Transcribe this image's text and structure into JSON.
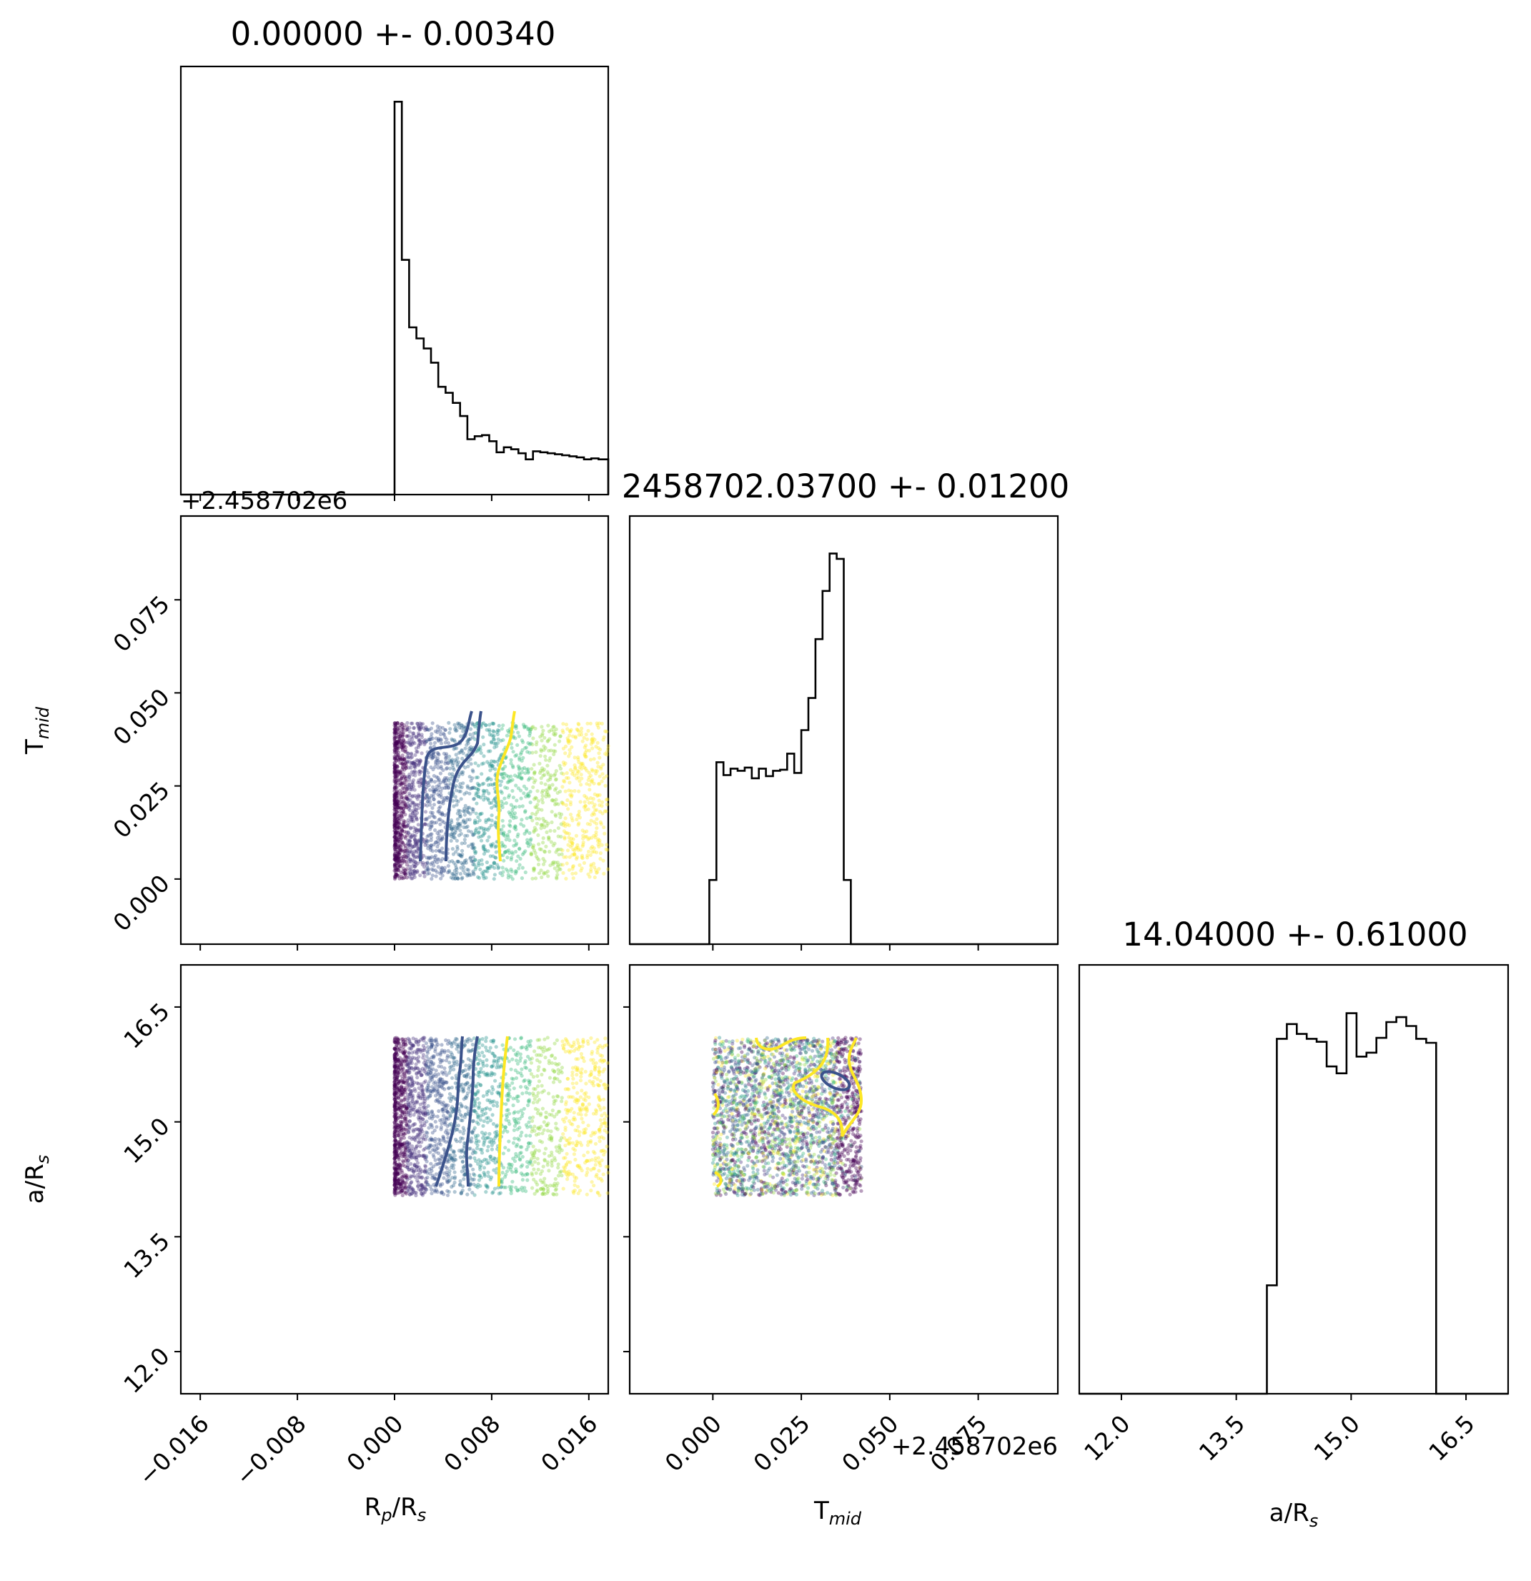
{
  "chart_data": [
    {
      "type": "histogram",
      "panel": "hist-rp",
      "title": "0.00000 +- 0.00340",
      "x_range": [
        -0.0176,
        0.0176
      ],
      "bins": [
        0.0,
        0.0006,
        0.0012,
        0.0018,
        0.0024,
        0.003,
        0.0036,
        0.0042,
        0.0048,
        0.0054,
        0.006,
        0.0066,
        0.0072,
        0.0078,
        0.0084,
        0.009,
        0.0096,
        0.0102,
        0.0108,
        0.0114,
        0.012,
        0.0126,
        0.0132,
        0.0138,
        0.0144,
        0.015,
        0.0156,
        0.0162,
        0.0168,
        0.0176
      ],
      "counts": [
        390,
        233,
        166,
        155,
        145,
        131,
        107,
        101,
        91,
        78,
        55,
        58,
        59,
        53,
        42,
        47,
        45,
        41,
        35,
        43,
        42,
        41,
        40,
        39,
        38,
        37,
        35,
        36,
        35
      ],
      "y_range": [
        0,
        425
      ]
    },
    {
      "type": "histogram",
      "panel": "hist-tmid",
      "title": "2458702.03700 +- 0.01200",
      "x_range": [
        -0.0235,
        0.0975
      ],
      "offset_label": "+2.458702e6",
      "xlabel": "T",
      "xlabel_sub": "mid",
      "x_ticks": [
        "0.000",
        "0.025",
        "0.050",
        "0.075"
      ],
      "bins": [
        -0.001,
        0.001,
        0.003,
        0.005,
        0.007,
        0.009,
        0.011,
        0.013,
        0.015,
        0.017,
        0.019,
        0.021,
        0.023,
        0.025,
        0.027,
        0.029,
        0.031,
        0.033,
        0.035,
        0.037,
        0.039,
        0.041,
        0.043
      ],
      "counts": [
        60,
        170,
        158,
        164,
        162,
        165,
        155,
        164,
        157,
        162,
        163,
        178,
        160,
        200,
        230,
        285,
        330,
        365,
        360,
        60,
        0,
        0
      ],
      "y_range": [
        0,
        400
      ]
    },
    {
      "type": "histogram",
      "panel": "hist-ars",
      "title": "14.04000 +- 0.61000",
      "x_range": [
        11.45,
        17.05
      ],
      "xlabel": "a/R",
      "xlabel_sub": "s",
      "x_ticks": [
        "12.0",
        "13.5",
        "15.0",
        "16.5"
      ],
      "bins": [
        13.9,
        14.03,
        14.16,
        14.29,
        14.42,
        14.55,
        14.68,
        14.81,
        14.94,
        15.07,
        15.2,
        15.33,
        15.46,
        15.59,
        15.72,
        15.85,
        15.98,
        16.11
      ],
      "counts": [
        110,
        360,
        375,
        365,
        360,
        357,
        332,
        325,
        386,
        342,
        346,
        361,
        377,
        382,
        373,
        360,
        356
      ],
      "y_range": [
        0,
        435
      ]
    },
    {
      "type": "scatter",
      "panel": "scatter-rp-tmid",
      "x_range": [
        -0.0176,
        0.0176
      ],
      "y_range": [
        -0.0175,
        0.0975
      ],
      "offset_label": "+2.458702e6",
      "ylabel": "T",
      "ylabel_sub": "mid",
      "y_ticks": [
        "0.000",
        "0.025",
        "0.050",
        "0.075"
      ]
    },
    {
      "type": "scatter",
      "panel": "scatter-rp-ars",
      "x_range": [
        -0.0176,
        0.0176
      ],
      "y_range": [
        11.45,
        17.05
      ],
      "xlabel": "R",
      "xlabel_sub": "p",
      "xlabel_rest": "/R",
      "xlabel_rest_sub": "s",
      "ylabel": "a/R",
      "ylabel_sub": "s",
      "x_ticks": [
        "−0.016",
        "−0.008",
        "0.000",
        "0.008",
        "0.016"
      ],
      "y_ticks": [
        "12.0",
        "13.5",
        "15.0",
        "16.5"
      ]
    },
    {
      "type": "scatter",
      "panel": "scatter-tmid-ars",
      "x_range": [
        -0.0235,
        0.0975
      ],
      "y_range": [
        11.45,
        17.05
      ]
    }
  ],
  "colors": {
    "dark_purple": "#440154",
    "blue": "#31688e",
    "teal": "#35b779",
    "yellow": "#fde725",
    "contour_dark": "#3b528b",
    "contour_yellow": "#fde725"
  }
}
